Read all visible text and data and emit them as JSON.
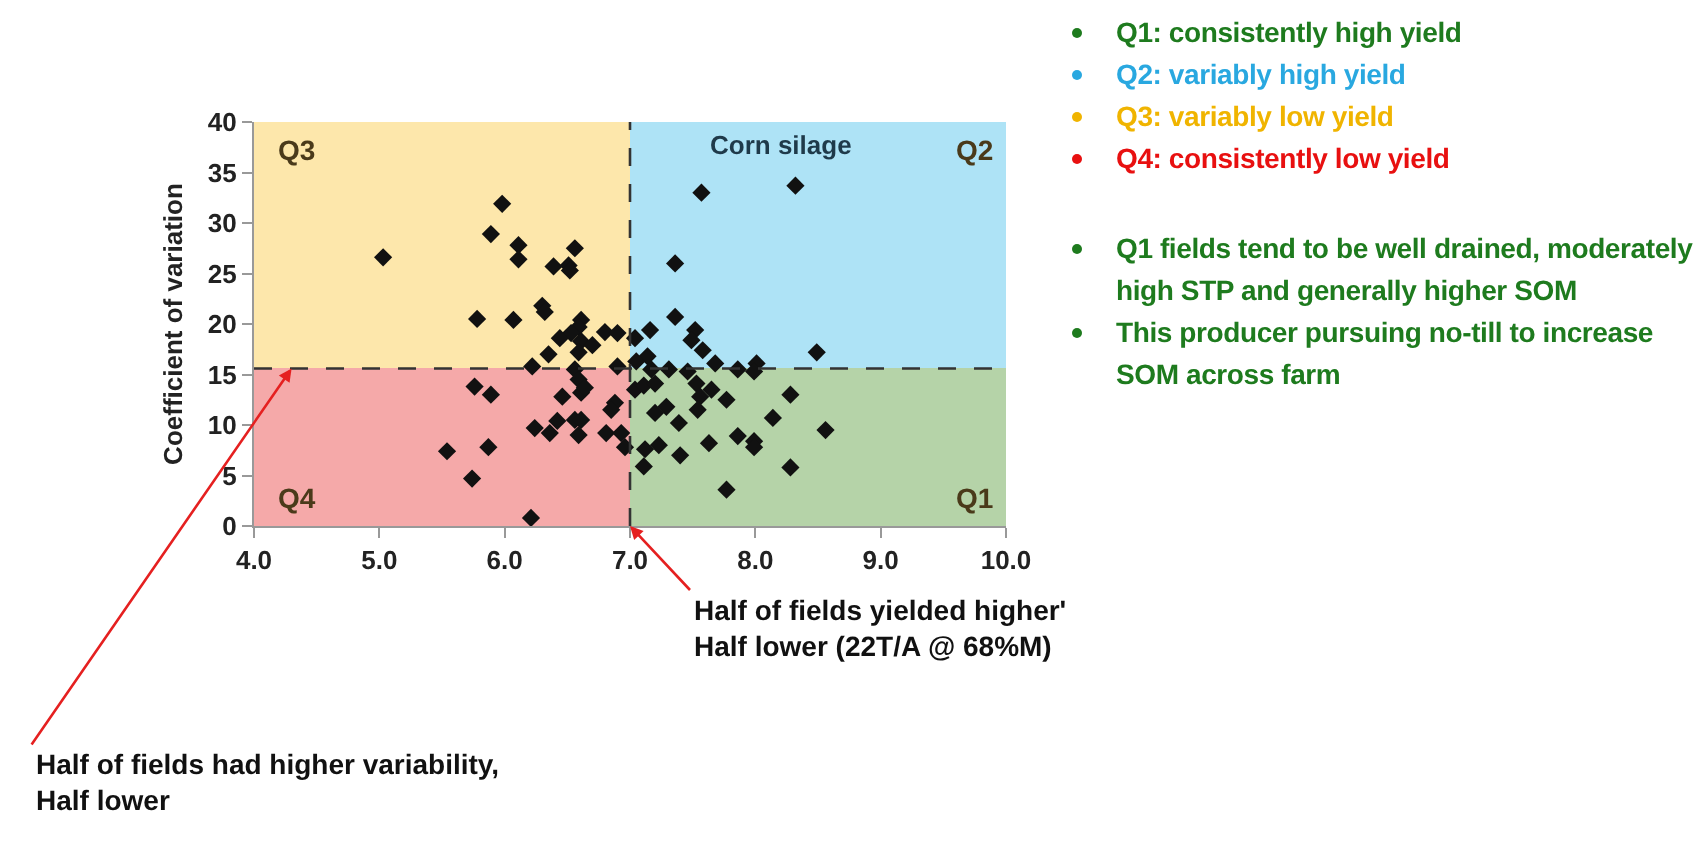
{
  "chart_data": {
    "type": "scatter",
    "ylabel": "Coefficient of variation",
    "xlim": [
      4,
      10
    ],
    "xticks": [
      {
        "value": 4,
        "label": "4.0"
      },
      {
        "value": 5,
        "label": "5.0"
      },
      {
        "value": 6,
        "label": "6.0"
      },
      {
        "value": 7,
        "label": "7.0"
      },
      {
        "value": 8,
        "label": "8.0"
      },
      {
        "value": 9,
        "label": "9.0"
      },
      {
        "value": 10,
        "label": "10.0"
      }
    ],
    "ylim": [
      0,
      40
    ],
    "yticks": [
      0,
      5,
      10,
      15,
      20,
      25,
      30,
      35,
      40
    ],
    "marker": "diamond",
    "stacked": true,
    "series": [
      {
        "type": "bar",
        "x": [
          5.5,
          8.5
        ],
        "values": [
          15.6,
          15.6
        ],
        "colors": [
          "#f5a9a9",
          "#b5d3a8"
        ]
      },
      {
        "type": "bar",
        "x": [
          5.5,
          8.5
        ],
        "values": [
          24.4,
          24.4
        ],
        "colors": [
          "#fde7ab",
          "#aee3f6"
        ]
      },
      {
        "color": "#111111",
        "x": [
          5.98,
          5.89,
          6.11,
          6.11,
          6.56,
          5.03,
          6.39,
          6.51,
          6.52,
          6.3,
          6.32,
          5.78,
          6.07,
          6.61,
          6.59,
          6.53,
          6.44,
          6.61,
          6.8,
          6.9,
          6.7,
          6.59,
          6.35,
          6.22,
          6.56,
          6.9,
          6.59,
          6.61,
          6.64,
          6.46,
          5.76,
          5.89,
          6.88,
          6.85,
          6.56,
          6.61,
          6.42,
          6.24,
          6.36,
          6.59,
          6.81,
          6.93,
          5.54,
          5.87,
          6.96,
          5.74,
          6.21,
          7.57,
          8.32,
          7.36,
          7.36,
          7.16,
          7.52,
          7.49,
          7.58,
          7.04,
          7.14,
          8.49,
          8.01,
          7.68,
          7.05,
          7.17,
          7.31,
          7.46,
          7.86,
          7.99,
          7.04,
          7.11,
          7.2,
          7.53,
          7.65,
          7.56,
          7.77,
          8.28,
          7.54,
          7.29,
          7.2,
          7.39,
          8.14,
          8.56,
          7.86,
          7.99,
          7.99,
          7.63,
          7.23,
          7.12,
          7.4,
          7.11,
          8.28,
          7.77
        ],
        "values": [
          31.9,
          28.9,
          27.8,
          26.4,
          27.5,
          26.6,
          25.7,
          25.8,
          25.3,
          21.8,
          21.2,
          20.5,
          20.4,
          20.4,
          19.7,
          19.1,
          18.6,
          18.3,
          19.2,
          19.1,
          17.9,
          17.2,
          17.0,
          15.8,
          15.5,
          15.8,
          14.5,
          13.2,
          13.7,
          12.8,
          13.8,
          13.0,
          12.2,
          11.5,
          10.5,
          10.5,
          10.4,
          9.7,
          9.2,
          9.0,
          9.2,
          9.2,
          7.4,
          7.8,
          7.8,
          4.7,
          0.8,
          33.0,
          33.7,
          26.0,
          20.7,
          19.4,
          19.4,
          18.4,
          17.4,
          18.6,
          16.8,
          17.2,
          16.1,
          16.1,
          16.3,
          15.5,
          15.5,
          15.3,
          15.5,
          15.3,
          13.5,
          13.9,
          14.1,
          14.1,
          13.5,
          12.8,
          12.5,
          13.0,
          11.5,
          11.8,
          11.2,
          10.2,
          10.7,
          9.5,
          8.9,
          8.4,
          7.8,
          8.2,
          8.0,
          7.6,
          7.0,
          5.9,
          5.8,
          3.6
        ]
      }
    ],
    "ref_lines": [
      {
        "axis": "x",
        "value": 7,
        "line_style": "dashed",
        "color": "#333333"
      },
      {
        "axis": "y",
        "value": 15.6,
        "line_style": "dashed",
        "color": "#333333"
      }
    ],
    "annotations": [
      "Corn silage",
      "Q1: consistently high yield",
      "Q2: variably high yield",
      "Q3: variably low yield",
      "Q4: consistently low yield",
      "Q1 fields tend to be well drained, moderately high STP and generally higher SOM",
      "This producer pursuing no-till to increase SOM across farm",
      {
        "text": "Half of fields yielded higher'\nHalf lower (22T/A @ 68%M)",
        "x": 7,
        "y": 0
      },
      {
        "text": "Half of fields had higher variability,\nHalf lower",
        "x": 4.3,
        "y": 15.6
      },
      {
        "text": "Q1",
        "x": 10,
        "y": 0
      },
      {
        "text": "Q2",
        "x": 10,
        "y": 40
      },
      {
        "text": "Q3",
        "x": 4,
        "y": 40
      },
      {
        "text": "Q4",
        "x": 4,
        "y": 0
      }
    ]
  }
}
